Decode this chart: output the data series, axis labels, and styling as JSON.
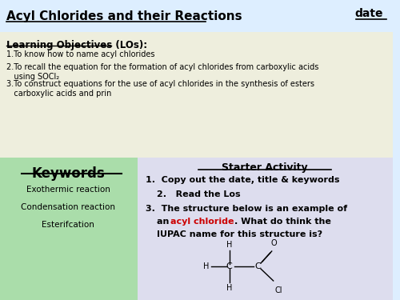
{
  "bg_top": "#ddeeff",
  "bg_lo": "#eeeedd",
  "bg_keywords": "#aaddaa",
  "bg_starter": "#ddddee",
  "title": "Acyl Chlorides and their Reactions",
  "date_label": "date",
  "lo_header": "Learning Objectives (LOs):",
  "lo1": "1.To know how to name acyl chlorides",
  "lo2": "2.To recall the equation for the formation of acyl chlorides from carboxylic acids\n   using SOCl₂",
  "lo3": "3.To construct equations for the use of acyl chlorides in the synthesis of esters\n   carboxylic acids and prin",
  "keywords_header": "Keywords",
  "keywords": [
    "Exothermic reaction",
    "Condensation reaction",
    "Esterifcation"
  ],
  "starter_header": "Starter Activity",
  "starter1": "1.  Copy out the date, title & keywords",
  "starter2": "2.   Read the Los",
  "title_color": "#000000",
  "text_color": "#000000",
  "red_color": "#cc0000"
}
